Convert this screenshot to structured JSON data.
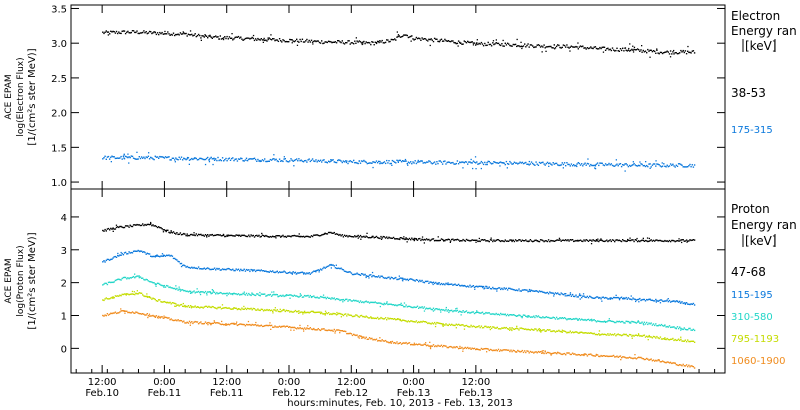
{
  "chart_data": [
    {
      "type": "scatter",
      "panel": "electron",
      "ylabel_lines": [
        "ACE EPAM",
        "log(Electron Flux)",
        "[1/(cm²s ster MeV)]"
      ],
      "legend_title": [
        "Electron",
        "Energy ran",
        "[keV]"
      ],
      "ylim": [
        0.9,
        3.55
      ],
      "yticks": [
        "1.0",
        "1.5",
        "2.0",
        "2.5",
        "3.0",
        "3.5"
      ],
      "ytick_values": [
        1.0,
        1.5,
        2.0,
        2.5,
        3.0,
        3.5
      ],
      "series": [
        {
          "name": "38-53",
          "color": "#000000",
          "points": [
            [
              0,
              3.16
            ],
            [
              6,
              3.17
            ],
            [
              12,
              3.15
            ],
            [
              16,
              3.14
            ],
            [
              20,
              3.1
            ],
            [
              26,
              3.08
            ],
            [
              32,
              3.06
            ],
            [
              36,
              3.05
            ],
            [
              42,
              3.03
            ],
            [
              48,
              3.02
            ],
            [
              52,
              3.01
            ],
            [
              56,
              3.05
            ],
            [
              58,
              3.14
            ],
            [
              60,
              3.08
            ],
            [
              66,
              3.04
            ],
            [
              72,
              3.0
            ],
            [
              78,
              2.99
            ],
            [
              84,
              2.97
            ],
            [
              90,
              2.96
            ],
            [
              96,
              2.93
            ],
            [
              102,
              2.91
            ],
            [
              108,
              2.88
            ],
            [
              114,
              2.88
            ]
          ]
        },
        {
          "name": "175-315",
          "color": "#0a78dc",
          "points": [
            [
              0,
              1.36
            ],
            [
              8,
              1.36
            ],
            [
              16,
              1.35
            ],
            [
              24,
              1.34
            ],
            [
              32,
              1.33
            ],
            [
              40,
              1.32
            ],
            [
              48,
              1.3
            ],
            [
              56,
              1.3
            ],
            [
              64,
              1.29
            ],
            [
              72,
              1.29
            ],
            [
              80,
              1.28
            ],
            [
              88,
              1.27
            ],
            [
              96,
              1.26
            ],
            [
              104,
              1.25
            ],
            [
              114,
              1.25
            ]
          ]
        }
      ]
    },
    {
      "type": "scatter",
      "panel": "proton",
      "ylabel_lines": [
        "ACE EPAM",
        "log(Proton Flux)",
        "[1/(cm²s ster MeV)]"
      ],
      "legend_title": [
        "Proton",
        "Energy ran",
        "[keV]"
      ],
      "ylim": [
        -0.75,
        4.85
      ],
      "yticks": [
        "0",
        "1",
        "2",
        "3",
        "4"
      ],
      "ytick_values": [
        0,
        1,
        2,
        3,
        4
      ],
      "series": [
        {
          "name": "47-68",
          "color": "#000000",
          "points": [
            [
              0,
              3.6
            ],
            [
              3,
              3.7
            ],
            [
              6,
              3.75
            ],
            [
              9,
              3.8
            ],
            [
              11,
              3.7
            ],
            [
              13,
              3.55
            ],
            [
              16,
              3.48
            ],
            [
              24,
              3.45
            ],
            [
              40,
              3.42
            ],
            [
              44,
              3.55
            ],
            [
              46,
              3.45
            ],
            [
              56,
              3.38
            ],
            [
              62,
              3.33
            ],
            [
              72,
              3.3
            ],
            [
              84,
              3.3
            ],
            [
              96,
              3.3
            ],
            [
              114,
              3.3
            ]
          ]
        },
        {
          "name": "115-195",
          "color": "#0a78dc",
          "points": [
            [
              0,
              2.65
            ],
            [
              4,
              2.9
            ],
            [
              7,
              3.0
            ],
            [
              10,
              2.8
            ],
            [
              13,
              2.85
            ],
            [
              16,
              2.5
            ],
            [
              20,
              2.45
            ],
            [
              30,
              2.38
            ],
            [
              40,
              2.3
            ],
            [
              44,
              2.55
            ],
            [
              48,
              2.3
            ],
            [
              56,
              2.15
            ],
            [
              60,
              2.1
            ],
            [
              64,
              2.0
            ],
            [
              72,
              1.9
            ],
            [
              80,
              1.8
            ],
            [
              88,
              1.68
            ],
            [
              92,
              1.6
            ],
            [
              96,
              1.55
            ],
            [
              100,
              1.55
            ],
            [
              104,
              1.5
            ],
            [
              110,
              1.45
            ],
            [
              114,
              1.35
            ]
          ]
        },
        {
          "name": "310-580",
          "color": "#23d6c8",
          "points": [
            [
              0,
              1.95
            ],
            [
              4,
              2.15
            ],
            [
              7,
              2.2
            ],
            [
              10,
              2.0
            ],
            [
              16,
              1.75
            ],
            [
              30,
              1.65
            ],
            [
              40,
              1.6
            ],
            [
              46,
              1.5
            ],
            [
              56,
              1.35
            ],
            [
              64,
              1.22
            ],
            [
              72,
              1.1
            ],
            [
              84,
              0.98
            ],
            [
              96,
              0.85
            ],
            [
              104,
              0.8
            ],
            [
              114,
              0.58
            ]
          ]
        },
        {
          "name": "795-1193",
          "color": "#c4dc00",
          "points": [
            [
              0,
              1.5
            ],
            [
              4,
              1.65
            ],
            [
              7,
              1.7
            ],
            [
              10,
              1.5
            ],
            [
              16,
              1.3
            ],
            [
              30,
              1.2
            ],
            [
              40,
              1.12
            ],
            [
              46,
              1.05
            ],
            [
              56,
              0.9
            ],
            [
              64,
              0.78
            ],
            [
              72,
              0.68
            ],
            [
              84,
              0.58
            ],
            [
              96,
              0.45
            ],
            [
              104,
              0.4
            ],
            [
              114,
              0.22
            ]
          ]
        },
        {
          "name": "1060-1900",
          "color": "#f08c1e",
          "points": [
            [
              0,
              1.02
            ],
            [
              4,
              1.15
            ],
            [
              7,
              1.1
            ],
            [
              10,
              1.0
            ],
            [
              16,
              0.82
            ],
            [
              30,
              0.72
            ],
            [
              40,
              0.62
            ],
            [
              46,
              0.55
            ],
            [
              50,
              0.35
            ],
            [
              56,
              0.2
            ],
            [
              64,
              0.1
            ],
            [
              72,
              0.0
            ],
            [
              84,
              -0.1
            ],
            [
              96,
              -0.2
            ],
            [
              104,
              -0.28
            ],
            [
              114,
              -0.55
            ]
          ]
        }
      ]
    }
  ],
  "x_axis": {
    "xlim": [
      -6,
      120
    ],
    "ticks": [
      {
        "x": 0,
        "time": "12:00",
        "date": "Feb.10"
      },
      {
        "x": 12,
        "time": "0:00",
        "date": "Feb.11"
      },
      {
        "x": 24,
        "time": "12:00",
        "date": "Feb.11"
      },
      {
        "x": 36,
        "time": "0:00",
        "date": "Feb.12"
      },
      {
        "x": 48,
        "time": "12:00",
        "date": "Feb.12"
      },
      {
        "x": 60,
        "time": "0:00",
        "date": "Feb.13"
      },
      {
        "x": 72,
        "time": "12:00",
        "date": "Feb.13"
      }
    ],
    "xlabel": "hours:minutes, Feb. 10, 2013 - Feb. 13, 2013"
  }
}
